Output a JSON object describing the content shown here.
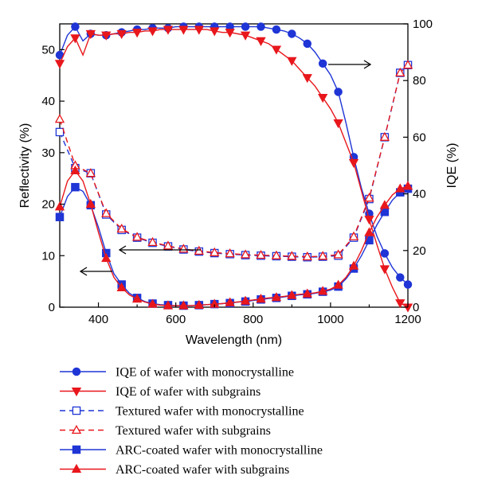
{
  "chart_data": {
    "type": "line",
    "xlabel": "Wavelength (nm)",
    "ylabel_left": "Reflectivity (%)",
    "ylabel_right": "IQE (%)",
    "xlim": [
      300,
      1200
    ],
    "ylim_left": [
      0,
      55
    ],
    "ylim_right": [
      0,
      100
    ],
    "x_ticks": [
      400,
      600,
      800,
      1000,
      1200
    ],
    "y_left_ticks": [
      0,
      10,
      20,
      30,
      40,
      50
    ],
    "y_right_ticks": [
      0,
      20,
      40,
      60,
      80,
      100
    ],
    "legend_position": "bottom",
    "colors": {
      "blue": "#1f35d6",
      "red": "#e8171c"
    },
    "series": [
      {
        "name": "IQE of wafer with monocrystalline",
        "axis": "right",
        "color": "#1f35d6",
        "marker": "circle-filled",
        "dash": "solid",
        "x": [
          300,
          320,
          340,
          360,
          380,
          400,
          420,
          440,
          460,
          480,
          500,
          520,
          540,
          560,
          580,
          600,
          620,
          640,
          660,
          680,
          700,
          720,
          740,
          760,
          780,
          800,
          820,
          840,
          860,
          880,
          900,
          920,
          940,
          960,
          980,
          1000,
          1020,
          1040,
          1060,
          1080,
          1100,
          1120,
          1140,
          1160,
          1180,
          1200
        ],
        "y": [
          89,
          96,
          99,
          94,
          96.5,
          96,
          96,
          96.5,
          97,
          97.5,
          98,
          98,
          98.5,
          98.5,
          98.5,
          99,
          99,
          99,
          99,
          99,
          99,
          99,
          99,
          99,
          99,
          99,
          99,
          98.5,
          98,
          97.5,
          96.5,
          95,
          93,
          90,
          86,
          82,
          76,
          65,
          53,
          42,
          33,
          25,
          19,
          14,
          10.5,
          8
        ]
      },
      {
        "name": "IQE of wafer with subgrains",
        "axis": "right",
        "color": "#e8171c",
        "marker": "triangle-down-filled",
        "dash": "solid",
        "x": [
          300,
          320,
          340,
          360,
          380,
          400,
          420,
          440,
          460,
          480,
          500,
          520,
          540,
          560,
          580,
          600,
          620,
          640,
          660,
          680,
          700,
          720,
          740,
          760,
          780,
          800,
          820,
          840,
          860,
          880,
          900,
          920,
          940,
          960,
          980,
          1000,
          1020,
          1040,
          1060,
          1080,
          1100,
          1120,
          1140,
          1160,
          1180,
          1200
        ],
        "y": [
          86,
          92,
          95,
          89,
          96.5,
          96,
          96,
          96.5,
          96.5,
          97,
          97,
          97.5,
          97.5,
          98,
          98,
          98,
          98,
          98,
          98,
          98,
          97.5,
          97,
          97,
          96.5,
          96,
          95,
          94,
          93,
          91,
          89,
          87,
          84,
          81,
          78,
          74,
          70,
          65,
          58,
          51,
          41,
          31,
          22,
          13.5,
          7,
          1.5,
          0
        ]
      },
      {
        "name": "Textured wafer with monocrystalline",
        "axis": "left",
        "color": "#1f35d6",
        "marker": "square-open",
        "dash": "dashed",
        "x": [
          300,
          340,
          380,
          420,
          460,
          500,
          540,
          580,
          620,
          660,
          700,
          740,
          780,
          820,
          860,
          900,
          940,
          980,
          1020,
          1060,
          1100,
          1140,
          1180,
          1200
        ],
        "y": [
          34,
          27,
          26,
          18,
          15,
          13.5,
          12.5,
          11.8,
          11.2,
          10.8,
          10.5,
          10.3,
          10.1,
          10,
          9.9,
          9.8,
          9.7,
          9.8,
          10,
          13.5,
          21,
          33,
          45.5,
          47
        ]
      },
      {
        "name": "Textured wafer with subgrains",
        "axis": "left",
        "color": "#e8171c",
        "marker": "triangle-up-open",
        "dash": "dashed",
        "x": [
          300,
          340,
          380,
          420,
          460,
          500,
          540,
          580,
          620,
          660,
          700,
          740,
          780,
          820,
          860,
          900,
          940,
          980,
          1020,
          1060,
          1100,
          1140,
          1180,
          1200
        ],
        "y": [
          36.5,
          27.5,
          26,
          18.2,
          15.2,
          13.6,
          12.6,
          11.9,
          11.3,
          10.9,
          10.6,
          10.4,
          10.2,
          10.1,
          10,
          9.9,
          9.8,
          9.9,
          10.2,
          13.7,
          21.2,
          33,
          45.5,
          47
        ]
      },
      {
        "name": "ARC-coated wafer with monocrystalline",
        "axis": "left",
        "color": "#1f35d6",
        "marker": "square-filled",
        "dash": "solid",
        "x": [
          300,
          320,
          340,
          360,
          380,
          400,
          420,
          440,
          460,
          480,
          500,
          520,
          540,
          560,
          580,
          600,
          620,
          640,
          660,
          680,
          700,
          720,
          740,
          760,
          780,
          800,
          820,
          840,
          860,
          880,
          900,
          920,
          940,
          960,
          980,
          1000,
          1020,
          1040,
          1060,
          1080,
          1100,
          1120,
          1140,
          1160,
          1180,
          1200
        ],
        "y": [
          17.5,
          21.5,
          23.3,
          22.5,
          19.8,
          15.5,
          10.5,
          6.5,
          4.4,
          2.7,
          1.8,
          1.1,
          0.7,
          0.5,
          0.4,
          0.3,
          0.3,
          0.3,
          0.4,
          0.5,
          0.6,
          0.7,
          0.8,
          1,
          1.1,
          1.3,
          1.5,
          1.7,
          1.8,
          2,
          2.2,
          2.4,
          2.5,
          2.7,
          3,
          3.3,
          4,
          5.5,
          7.5,
          10,
          13,
          16,
          18.5,
          20.8,
          22.3,
          23
        ]
      },
      {
        "name": "ARC-coated wafer with subgrains",
        "axis": "left",
        "color": "#e8171c",
        "marker": "triangle-up-filled",
        "dash": "solid",
        "x": [
          300,
          320,
          340,
          360,
          380,
          400,
          420,
          440,
          460,
          480,
          500,
          520,
          540,
          560,
          580,
          600,
          620,
          640,
          660,
          680,
          700,
          720,
          740,
          760,
          780,
          800,
          820,
          840,
          860,
          880,
          900,
          920,
          940,
          960,
          980,
          1000,
          1020,
          1040,
          1060,
          1080,
          1100,
          1120,
          1140,
          1160,
          1180,
          1200
        ],
        "y": [
          19.5,
          24.5,
          26.5,
          24.5,
          20,
          14.5,
          9.5,
          5.8,
          3.8,
          2.4,
          1.6,
          1,
          0.6,
          0.4,
          0.3,
          0.3,
          0.3,
          0.3,
          0.4,
          0.5,
          0.6,
          0.7,
          0.9,
          1,
          1.2,
          1.4,
          1.6,
          1.8,
          1.9,
          2.1,
          2.3,
          2.5,
          2.6,
          2.8,
          3.1,
          3.5,
          4.3,
          5.8,
          8,
          11,
          14.5,
          17.5,
          19.8,
          21.8,
          23,
          23.5
        ]
      }
    ]
  }
}
